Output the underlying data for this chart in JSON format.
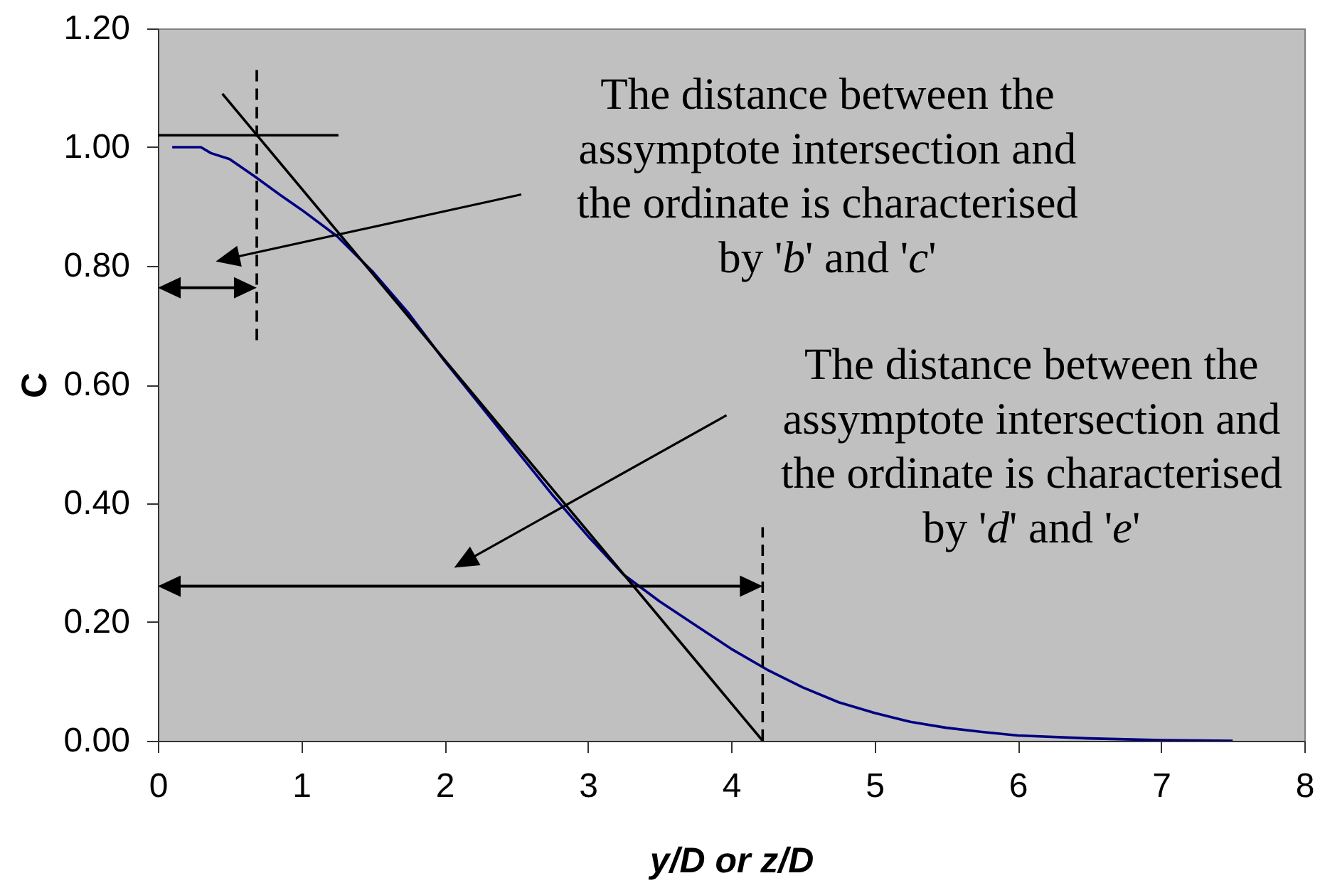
{
  "chart_data": {
    "type": "line",
    "xlabel": "y/D or z/D",
    "ylabel": "C",
    "xlim": [
      0,
      8
    ],
    "ylim": [
      0,
      1.2
    ],
    "xticks": [
      0,
      1,
      2,
      3,
      4,
      5,
      6,
      7,
      8
    ],
    "yticks": [
      {
        "value": 0,
        "label": "0.00"
      },
      {
        "value": 0.2,
        "label": "0.20"
      },
      {
        "value": 0.4,
        "label": "0.40"
      },
      {
        "value": 0.6,
        "label": "0.60"
      },
      {
        "value": 0.8,
        "label": "0.80"
      },
      {
        "value": 1,
        "label": "1.00"
      },
      {
        "value": 1.2,
        "label": "1.20"
      }
    ],
    "series": [
      {
        "color": "#000080",
        "x": [
          0.1,
          0.2,
          0.3,
          0.37,
          0.5,
          0.68,
          0.85,
          1.0,
          1.25,
          1.5,
          1.75,
          2.0,
          2.25,
          2.5,
          2.75,
          3.0,
          3.25,
          3.5,
          3.75,
          4.0,
          4.25,
          4.5,
          4.75,
          5.0,
          5.25,
          5.5,
          5.75,
          6.0,
          6.5,
          7.0,
          7.5
        ],
        "values": [
          1.0,
          1.0,
          1.0,
          0.99,
          0.98,
          0.95,
          0.92,
          0.895,
          0.85,
          0.79,
          0.72,
          0.64,
          0.565,
          0.49,
          0.415,
          0.345,
          0.28,
          0.235,
          0.195,
          0.155,
          0.12,
          0.09,
          0.065,
          0.047,
          0.032,
          0.022,
          0.015,
          0.009,
          0.004,
          0.001,
          0.0
        ]
      },
      {
        "color": "#000000",
        "x": [
          0.45,
          4.22
        ],
        "values": [
          1.09,
          0
        ]
      },
      {
        "color": "#000000",
        "x": [
          0,
          1.26
        ],
        "values": [
          1.02,
          1.02
        ]
      },
      {
        "color": "#000000",
        "x": [
          0.69,
          0.69
        ],
        "values": [
          1.13,
          0.67
        ],
        "line_style": "dashed"
      },
      {
        "color": "#000000",
        "x": [
          4.22,
          4.22
        ],
        "values": [
          0,
          0.36
        ],
        "line_style": "dashed"
      }
    ],
    "annotations": [
      "The distance between the assymptote intersection and the ordinate is characterised by 'b' and 'c'",
      "The distance between the assymptote intersection and the ordinate is characterised by 'd' and 'e'"
    ]
  }
}
